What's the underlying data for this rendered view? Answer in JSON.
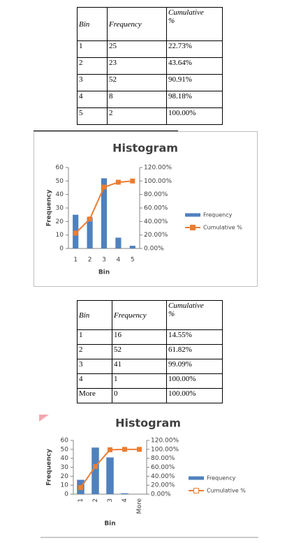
{
  "tables": [
    {
      "header": [
        "Bin",
        "Frequency",
        "Cumulative %"
      ],
      "rows": [
        [
          "1",
          "25",
          "22.73%"
        ],
        [
          "2",
          "23",
          "43.64%"
        ],
        [
          "3",
          "52",
          "90.91%"
        ],
        [
          "4",
          "8",
          "98.18%"
        ],
        [
          "5",
          "2",
          "100.00%"
        ]
      ]
    },
    {
      "header": [
        "Bin",
        "Frequency",
        "Cumulative %"
      ],
      "rows": [
        [
          "1",
          "16",
          "14.55%"
        ],
        [
          "2",
          "52",
          "61.82%"
        ],
        [
          "3",
          "41",
          "99.09%"
        ],
        [
          "4",
          "1",
          "100.00%"
        ],
        [
          "More",
          "0",
          "100.00%"
        ]
      ]
    }
  ],
  "chart_data": [
    {
      "type": "bar",
      "title": "Histogram",
      "x_label": "Bin",
      "y_label": "Frequency",
      "categories": [
        "1",
        "2",
        "3",
        "4",
        "5"
      ],
      "series": [
        {
          "name": "Frequency",
          "color": "#4f81bd",
          "values": [
            25,
            23,
            52,
            8,
            2
          ]
        },
        {
          "name": "Cumulative %",
          "color": "#ed7d31",
          "type": "line",
          "axis": "y2",
          "values": [
            22.73,
            43.64,
            90.91,
            98.18,
            100
          ]
        }
      ],
      "ylim": [
        0,
        60
      ],
      "yticks": [
        0,
        10,
        20,
        30,
        40,
        50,
        60
      ],
      "y2lim": [
        0,
        120
      ],
      "y2ticks": [
        {
          "value": 0,
          "label": "0.00%"
        },
        {
          "value": 20,
          "label": "20.00%"
        },
        {
          "value": 40,
          "label": "40.00%"
        },
        {
          "value": 60,
          "label": "60.00%"
        },
        {
          "value": 80,
          "label": "80.00%"
        },
        {
          "value": 100,
          "label": "100.00%"
        },
        {
          "value": 120,
          "label": "120.00%"
        }
      ],
      "legend": "right"
    },
    {
      "type": "bar",
      "title": "Histogram",
      "x_label": "Bin",
      "y_label": "Frequency",
      "categories": [
        "1",
        "2",
        "3",
        "4",
        "More"
      ],
      "series": [
        {
          "name": "Frequency",
          "color": "#4f81bd",
          "values": [
            16,
            52,
            41,
            1,
            0
          ]
        },
        {
          "name": "Cumulative %",
          "color": "#ed7d31",
          "type": "line",
          "axis": "y2",
          "values": [
            14.55,
            61.82,
            99.09,
            100,
            100
          ]
        }
      ],
      "ylim": [
        0,
        60
      ],
      "yticks": [
        0,
        10,
        20,
        30,
        40,
        50,
        60
      ],
      "y2lim": [
        0,
        120
      ],
      "y2ticks": [
        {
          "value": 0,
          "label": "0.00%"
        },
        {
          "value": 20,
          "label": "20.00%"
        },
        {
          "value": 40,
          "label": "40.00%"
        },
        {
          "value": 60,
          "label": "60.00%"
        },
        {
          "value": 80,
          "label": "80.00%"
        },
        {
          "value": 100,
          "label": "100.00%"
        },
        {
          "value": 120,
          "label": "120.00%"
        }
      ],
      "legend": "right"
    }
  ]
}
